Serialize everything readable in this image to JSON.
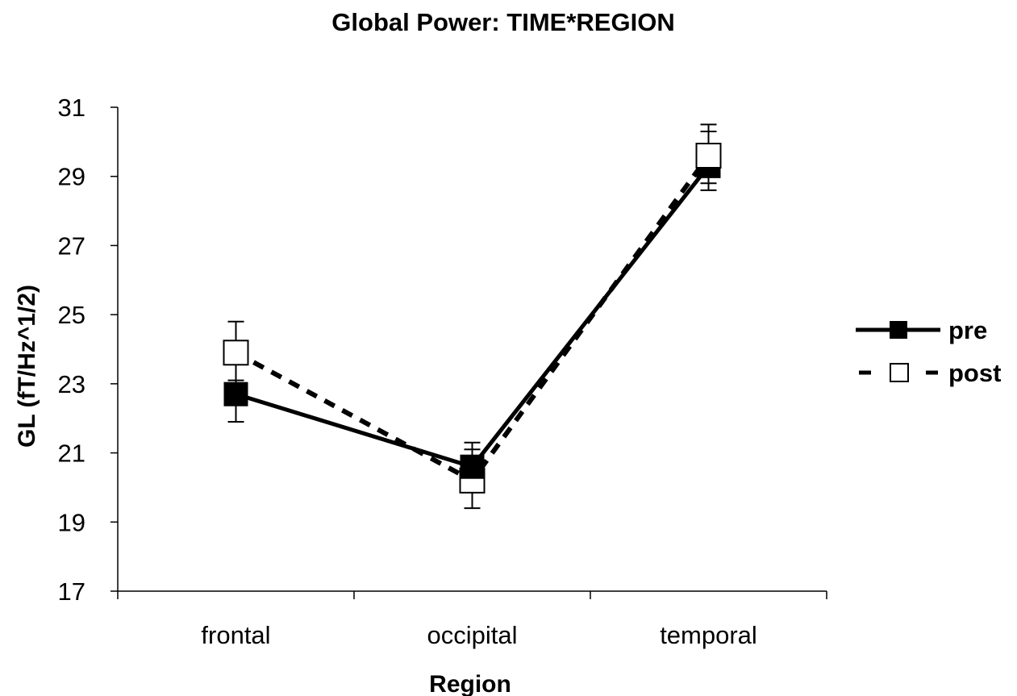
{
  "chart_data": {
    "type": "line",
    "title": "Global Power: TIME*REGION",
    "xlabel": "Region",
    "ylabel": "GL (fT/Hz^1/2)",
    "categories": [
      "frontal",
      "occipital",
      "temporal"
    ],
    "ylim": [
      17,
      31
    ],
    "yticks": [
      17,
      19,
      21,
      23,
      25,
      27,
      29,
      31
    ],
    "grid": false,
    "legend_position": "right",
    "series": [
      {
        "name": "pre",
        "values": [
          22.7,
          20.6,
          29.3
        ],
        "error_upper": [
          23.6,
          21.3,
          30.3
        ],
        "error_lower": [
          21.9,
          19.9,
          28.6
        ],
        "line_style": "solid",
        "marker": "filled-square",
        "color": "#000000"
      },
      {
        "name": "post",
        "values": [
          23.9,
          20.2,
          29.6
        ],
        "error_upper": [
          24.8,
          21.1,
          30.5
        ],
        "error_lower": [
          23.1,
          19.4,
          28.8
        ],
        "line_style": "dashed",
        "marker": "open-square",
        "color": "#000000"
      }
    ]
  }
}
